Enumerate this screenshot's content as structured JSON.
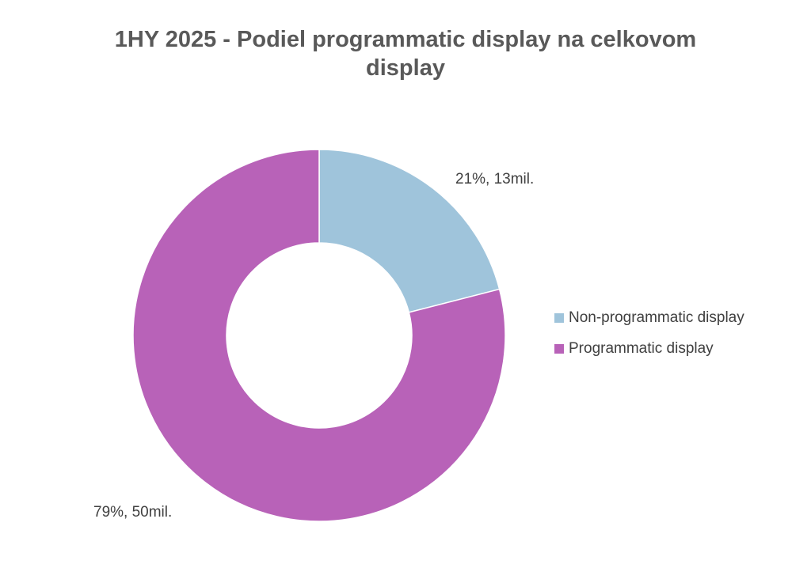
{
  "chart_data": {
    "type": "pie",
    "title_lines": [
      "1HY 2025 - Podiel programmatic display na celkovom",
      "display"
    ],
    "categories": [
      "Non-programmatic display",
      "Programmatic display"
    ],
    "values": [
      21,
      79
    ],
    "data_labels": [
      "21%, 13mil.",
      "79%, 50mil."
    ],
    "colors": [
      "#9fc4db",
      "#b862b8"
    ],
    "donut": true,
    "legend_position": "right"
  }
}
